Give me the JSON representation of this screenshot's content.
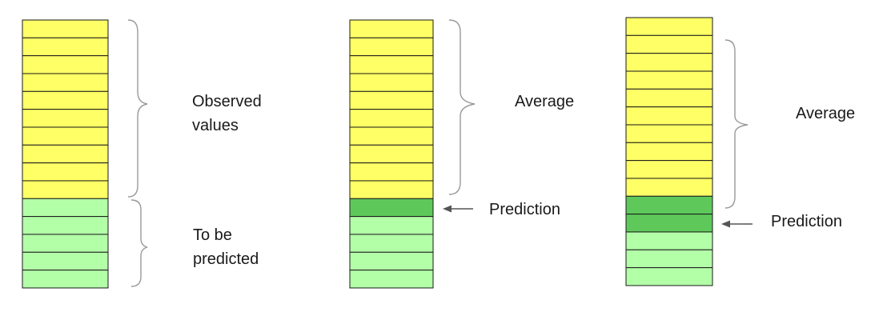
{
  "colors": {
    "observed": "#ffff66",
    "to_predict": "#b3ffa8",
    "prediction": "#5ec95a",
    "cell_border": "#1a1a1a",
    "bracket": "#9a9a9a",
    "arrow": "#555555"
  },
  "panels": [
    {
      "name": "observed-split",
      "cells": [
        "observed",
        "observed",
        "observed",
        "observed",
        "observed",
        "observed",
        "observed",
        "observed",
        "observed",
        "observed",
        "to_predict",
        "to_predict",
        "to_predict",
        "to_predict",
        "to_predict"
      ],
      "labels": {
        "observed_line1": "Observed",
        "observed_line2": "values",
        "predict_line1": "To be",
        "predict_line2": "predicted"
      }
    },
    {
      "name": "first-prediction",
      "cells": [
        "observed",
        "observed",
        "observed",
        "observed",
        "observed",
        "observed",
        "observed",
        "observed",
        "observed",
        "observed",
        "prediction",
        "to_predict",
        "to_predict",
        "to_predict",
        "to_predict"
      ],
      "labels": {
        "average": "Average",
        "prediction": "Prediction"
      }
    },
    {
      "name": "second-prediction",
      "cells": [
        "observed",
        "observed",
        "observed",
        "observed",
        "observed",
        "observed",
        "observed",
        "observed",
        "observed",
        "observed",
        "prediction",
        "prediction",
        "to_predict",
        "to_predict",
        "to_predict"
      ],
      "labels": {
        "average": "Average",
        "prediction": "Prediction"
      }
    }
  ]
}
